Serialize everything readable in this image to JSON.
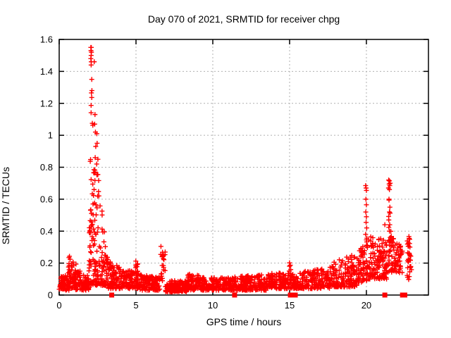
{
  "chart": {
    "title": "Day 070 of 2021, SRMTID for receiver chpg",
    "xlabel": "GPS time / hours",
    "ylabel": "SRMTID / TECUs"
  },
  "chart_data": {
    "type": "scatter",
    "title": "Day 070 of 2021, SRMTID for receiver chpg",
    "xlabel": "GPS time / hours",
    "ylabel": "SRMTID / TECUs",
    "xlim": [
      0,
      24.04
    ],
    "ylim": [
      0,
      1.6
    ],
    "xticks": [
      {
        "label": "0",
        "value": 0
      },
      {
        "label": "5",
        "value": 5
      },
      {
        "label": "10",
        "value": 10
      },
      {
        "label": "15",
        "value": 15
      },
      {
        "label": "20",
        "value": 20
      }
    ],
    "yticks": [
      {
        "label": "0",
        "value": 0
      },
      {
        "label": "0.2",
        "value": 0.2
      },
      {
        "label": "0.4",
        "value": 0.4
      },
      {
        "label": "0.6",
        "value": 0.6
      },
      {
        "label": "0.8",
        "value": 0.8
      },
      {
        "label": "1",
        "value": 1
      },
      {
        "label": "1.2",
        "value": 1.2
      },
      {
        "label": "1.4",
        "value": 1.4
      },
      {
        "label": "1.6",
        "value": 1.6
      }
    ],
    "grid": true,
    "legend_position": "none",
    "marker": "plus",
    "marker_size_px": 7,
    "color": "#ff0000",
    "grid_color": "#b0b0b0",
    "border_color": "#000000",
    "random_seed": 1234567,
    "notable_points": [
      [
        2.06,
        1.55
      ],
      [
        2.09,
        1.55
      ],
      [
        2.07,
        1.53
      ],
      [
        2.1,
        1.52
      ],
      [
        2.08,
        1.5
      ],
      [
        2.06,
        1.48
      ],
      [
        2.09,
        1.46
      ],
      [
        2.08,
        1.44
      ],
      [
        2.28,
        1.46
      ],
      [
        2.12,
        1.35
      ],
      [
        2.13,
        1.28
      ],
      [
        2.33,
        1.13
      ],
      [
        2.31,
        1.07
      ],
      [
        2.36,
        1.02
      ],
      [
        2.45,
        1.01
      ],
      [
        2.47,
        0.95
      ],
      [
        2.38,
        0.93
      ],
      [
        2.52,
        0.85
      ],
      [
        2.44,
        0.82
      ],
      [
        19.95,
        0.685
      ],
      [
        19.98,
        0.67
      ],
      [
        20.0,
        0.655
      ],
      [
        19.97,
        0.6
      ],
      [
        20.0,
        0.565
      ],
      [
        19.96,
        0.52
      ],
      [
        20.0,
        0.49
      ],
      [
        19.98,
        0.455
      ],
      [
        20.02,
        0.42
      ],
      [
        19.95,
        0.38
      ],
      [
        20.0,
        0.345
      ],
      [
        20.05,
        0.31
      ],
      [
        21.45,
        0.72
      ],
      [
        21.5,
        0.715
      ],
      [
        21.55,
        0.7
      ],
      [
        21.48,
        0.695
      ],
      [
        21.52,
        0.685
      ],
      [
        21.44,
        0.67
      ],
      [
        21.5,
        0.66
      ],
      [
        21.47,
        0.6
      ],
      [
        21.53,
        0.55
      ],
      [
        21.5,
        0.52
      ],
      [
        21.46,
        0.47
      ],
      [
        21.52,
        0.44
      ],
      [
        21.5,
        0.4
      ],
      [
        21.55,
        0.36
      ],
      [
        21.2,
        0.44
      ],
      [
        21.05,
        0.3
      ]
    ],
    "zero_markers_x": [
      3.42,
      11.42,
      15.05,
      15.37,
      21.2,
      22.35,
      22.5
    ],
    "density_segments": [
      {
        "n": 70,
        "x": [
          0.0,
          0.65
        ],
        "ybase": 0.03,
        "ytop": [
          0.13,
          0.13
        ],
        "skew": 1.3
      },
      {
        "n": 55,
        "x": [
          0.6,
          1.1
        ],
        "ybase": 0.04,
        "ytop": [
          0.25,
          0.2
        ],
        "skew": 1.2
      },
      {
        "n": 90,
        "x": [
          1.05,
          1.95
        ],
        "ybase": 0.03,
        "ytop": [
          0.15,
          0.16
        ],
        "skew": 1.5
      },
      {
        "n": 14,
        "x": [
          2.02,
          2.2
        ],
        "ybase": 0.35,
        "ytop": [
          1.3,
          1.25
        ],
        "skew": 1.0
      },
      {
        "n": 60,
        "x": [
          1.95,
          2.35
        ],
        "ybase": 0.06,
        "ytop": [
          0.45,
          0.9
        ],
        "skew": 1.8
      },
      {
        "n": 110,
        "x": [
          2.35,
          3.2
        ],
        "ybase": 0.06,
        "ytop": [
          0.9,
          0.2
        ],
        "skew": 2.0
      },
      {
        "n": 110,
        "x": [
          3.2,
          4.3
        ],
        "ybase": 0.04,
        "ytop": [
          0.22,
          0.15
        ],
        "skew": 1.8
      },
      {
        "n": 90,
        "x": [
          4.3,
          5.15
        ],
        "ybase": 0.04,
        "ytop": [
          0.16,
          0.16
        ],
        "skew": 1.5
      },
      {
        "n": 9,
        "x": [
          4.95,
          5.12
        ],
        "ybase": 0.1,
        "ytop": [
          0.28,
          0.25
        ],
        "skew": 1.0
      },
      {
        "n": 120,
        "x": [
          5.15,
          6.55
        ],
        "ybase": 0.03,
        "ytop": [
          0.13,
          0.11
        ],
        "skew": 1.5
      },
      {
        "n": 22,
        "x": [
          6.6,
          6.92
        ],
        "ybase": 0.07,
        "ytop": [
          0.31,
          0.27
        ],
        "skew": 1.1
      },
      {
        "n": 150,
        "x": [
          6.9,
          8.35
        ],
        "ybase": 0.02,
        "ytop": [
          0.09,
          0.09
        ],
        "skew": 1.4
      },
      {
        "n": 90,
        "x": [
          8.35,
          9.3
        ],
        "ybase": 0.03,
        "ytop": [
          0.14,
          0.12
        ],
        "skew": 1.5
      },
      {
        "n": 170,
        "x": [
          9.3,
          11.3
        ],
        "ybase": 0.03,
        "ytop": [
          0.11,
          0.11
        ],
        "skew": 1.4
      },
      {
        "n": 200,
        "x": [
          11.3,
          13.6
        ],
        "ybase": 0.03,
        "ytop": [
          0.12,
          0.13
        ],
        "skew": 1.5
      },
      {
        "n": 150,
        "x": [
          13.6,
          15.3
        ],
        "ybase": 0.04,
        "ytop": [
          0.14,
          0.14
        ],
        "skew": 1.5
      },
      {
        "n": 6,
        "x": [
          14.92,
          15.1
        ],
        "ybase": 0.12,
        "ytop": [
          0.23,
          0.2
        ],
        "skew": 1.0
      },
      {
        "n": 180,
        "x": [
          15.3,
          17.6
        ],
        "ybase": 0.04,
        "ytop": [
          0.14,
          0.17
        ],
        "skew": 1.5
      },
      {
        "n": 150,
        "x": [
          17.6,
          19.4
        ],
        "ybase": 0.05,
        "ytop": [
          0.2,
          0.26
        ],
        "skew": 1.6
      },
      {
        "n": 60,
        "x": [
          19.4,
          20.05
        ],
        "ybase": 0.08,
        "ytop": [
          0.26,
          0.34
        ],
        "skew": 1.4
      },
      {
        "n": 140,
        "x": [
          20.0,
          21.35
        ],
        "ybase": 0.1,
        "ytop": [
          0.38,
          0.34
        ],
        "skew": 1.6
      },
      {
        "n": 8,
        "x": [
          21.42,
          21.62
        ],
        "ybase": 0.3,
        "ytop": [
          0.62,
          0.6
        ],
        "skew": 1.0
      },
      {
        "n": 80,
        "x": [
          21.4,
          22.35
        ],
        "ybase": 0.14,
        "ytop": [
          0.4,
          0.3
        ],
        "skew": 1.5
      },
      {
        "n": 32,
        "x": [
          22.6,
          22.95
        ],
        "ybase": 0.08,
        "ytop": [
          0.37,
          0.37
        ],
        "skew": 1.0
      }
    ]
  }
}
